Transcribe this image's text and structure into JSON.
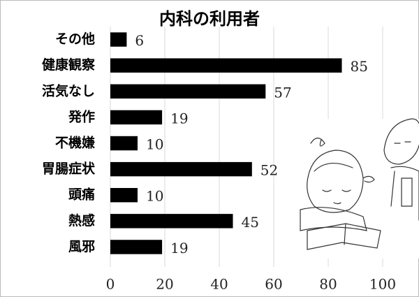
{
  "chart_data": {
    "type": "bar",
    "orientation": "horizontal",
    "title": "内科の利用者",
    "categories": [
      "その他",
      "健康観察",
      "活気なし",
      "発作",
      "不機嫌",
      "胃腸症状",
      "頭痛",
      "熱感",
      "風邪"
    ],
    "values": [
      6,
      85,
      57,
      19,
      10,
      52,
      10,
      45,
      19
    ],
    "color": "#000000",
    "xlim": [
      0,
      100
    ],
    "xticks": [
      0,
      20,
      40,
      60,
      80,
      100
    ],
    "grid": true
  }
}
